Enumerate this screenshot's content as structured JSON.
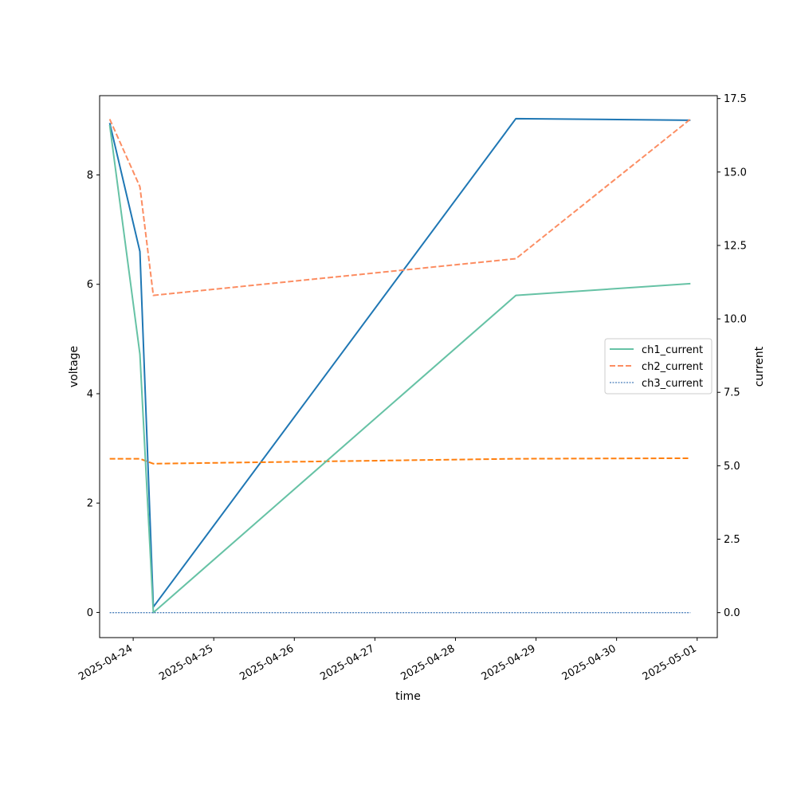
{
  "chart_data": {
    "type": "line",
    "xlabel": "time",
    "ylabel_left": "voltage",
    "ylabel_right": "current",
    "x_axis": {
      "type": "date",
      "range": [
        "2025-04-23 14:00",
        "2025-05-01 06:00"
      ],
      "tick_labels": [
        "2025-04-24",
        "2025-04-25",
        "2025-04-26",
        "2025-04-27",
        "2025-04-28",
        "2025-04-29",
        "2025-04-30",
        "2025-05-01"
      ]
    },
    "y_left": {
      "range": [
        -0.46,
        9.45
      ],
      "ticks": [
        0,
        2,
        4,
        6,
        8
      ],
      "tick_labels": [
        "0",
        "2",
        "4",
        "6",
        "8"
      ]
    },
    "y_right": {
      "range": [
        -0.85,
        17.6
      ],
      "ticks": [
        0,
        2.5,
        5,
        7.5,
        10,
        12.5,
        15,
        17.5
      ],
      "tick_labels": [
        "0.0",
        "2.5",
        "5.0",
        "7.5",
        "10.0",
        "12.5",
        "15.0",
        "17.5"
      ]
    },
    "legend": {
      "location": "center-right",
      "entries": [
        "ch1_current",
        "ch2_current",
        "ch3_current"
      ]
    },
    "grid": false,
    "series": [
      {
        "axis": "left",
        "color": "#1f77b4",
        "dash": "solid",
        "width": 2,
        "x": [
          "2025-04-23 17:00",
          "2025-04-24 02:00",
          "2025-04-24 06:00",
          "2025-04-28 18:00",
          "2025-04-30 22:00"
        ],
        "values": [
          8.95,
          6.6,
          0.1,
          9.03,
          9.0
        ]
      },
      {
        "axis": "left",
        "color": "#ff7f0e",
        "dash": "dashed",
        "width": 2,
        "x": [
          "2025-04-23 17:00",
          "2025-04-24 02:00",
          "2025-04-24 06:00",
          "2025-04-28 18:00",
          "2025-04-30 22:00"
        ],
        "values": [
          2.81,
          2.81,
          2.72,
          2.81,
          2.82
        ]
      },
      {
        "name": "ch1_current",
        "axis": "right",
        "color": "#66c2a5",
        "dash": "solid",
        "width": 2,
        "x": [
          "2025-04-23 17:00",
          "2025-04-24 02:00",
          "2025-04-24 06:00",
          "2025-04-28 18:00",
          "2025-04-30 22:00"
        ],
        "values": [
          16.6,
          8.8,
          0.0,
          10.8,
          11.2
        ]
      },
      {
        "name": "ch2_current",
        "axis": "right",
        "color": "#fc8d62",
        "dash": "dashed",
        "width": 2,
        "x": [
          "2025-04-23 17:00",
          "2025-04-24 02:00",
          "2025-04-24 06:00",
          "2025-04-28 18:00",
          "2025-04-30 22:00"
        ],
        "values": [
          16.8,
          14.5,
          10.8,
          12.05,
          16.8
        ]
      },
      {
        "name": "ch3_current",
        "axis": "right",
        "color": "#4a7fba",
        "dash": "dotted",
        "width": 1.3,
        "x": [
          "2025-04-23 17:00",
          "2025-04-24 02:00",
          "2025-04-24 06:00",
          "2025-04-28 18:00",
          "2025-04-30 22:00"
        ],
        "values": [
          0.0,
          0.0,
          0.0,
          0.0,
          0.0
        ]
      }
    ]
  }
}
